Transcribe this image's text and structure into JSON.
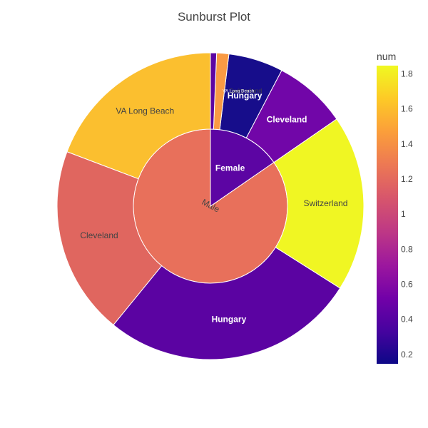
{
  "chart_data": {
    "type": "sunburst",
    "title": "Sunburst Plot",
    "color_metric": "num",
    "color_range": [
      0.15,
      1.85
    ],
    "colorbar": {
      "title": "num",
      "ticks": [
        0.2,
        0.4,
        0.6,
        0.8,
        1,
        1.2,
        1.4,
        1.6,
        1.8
      ],
      "tick_labels": [
        "0.2",
        "0.4",
        "0.6",
        "0.8",
        "1",
        "1.2",
        "1.4",
        "1.6",
        "1.8"
      ]
    },
    "colors": {
      "Male": "#e8705b",
      "Female": "#5c05a3",
      "Male/Cleveland": "#e0665f",
      "Male/VA Long Beach": "#fbbf2f",
      "Male/Hungary": "#5b03a2",
      "Male/Switzerland": "#f0f623",
      "Female/VA Long Beach": "#5c05a3",
      "Female/Switzerland": "#f99a44",
      "Female/Hungary": "#170d8b",
      "Female/Cleveland": "#7106a8"
    },
    "nodes": [
      {
        "id": "Male",
        "label": "Male",
        "parent": "",
        "value": 264,
        "num": 1.22
      },
      {
        "id": "Female",
        "label": "Female",
        "parent": "",
        "value": 48,
        "num": 0.5
      },
      {
        "id": "Male/VA Long Beach",
        "label": "VA Long Beach",
        "parent": "Male",
        "value": 60,
        "num": 1.65
      },
      {
        "id": "Male/Cleveland",
        "label": "Cleveland",
        "parent": "Male",
        "value": 62,
        "num": 1.2
      },
      {
        "id": "Male/Hungary",
        "label": "Hungary",
        "parent": "Male",
        "value": 84,
        "num": 0.45
      },
      {
        "id": "Male/Switzerland",
        "label": "Switzerland",
        "parent": "Male",
        "value": 58,
        "num": 1.85
      },
      {
        "id": "Female/Cleveland",
        "label": "Cleveland",
        "parent": "Female",
        "value": 24,
        "num": 0.6
      },
      {
        "id": "Female/Hungary",
        "label": "Hungary",
        "parent": "Female",
        "value": 18,
        "num": 0.2
      },
      {
        "id": "Female/Switzerland",
        "label": "Switzerland",
        "parent": "Female",
        "value": 4,
        "num": 1.5
      },
      {
        "id": "Female/VA Long Beach",
        "label": "VA Long Beach",
        "parent": "Female",
        "value": 2,
        "num": 0.5
      }
    ]
  }
}
